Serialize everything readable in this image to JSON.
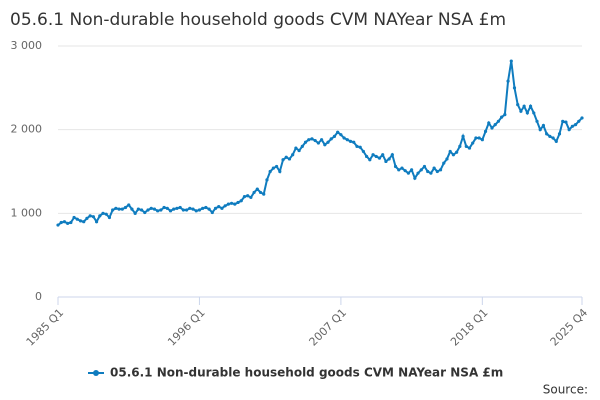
{
  "chart_data": {
    "type": "line",
    "title": "05.6.1 Non-durable household goods CVM NAYear NSA £m",
    "source": "Source:",
    "categories": [
      "1985 Q1",
      null,
      null,
      null,
      null,
      null,
      null,
      null,
      null,
      null,
      null,
      null,
      null,
      null,
      null,
      null,
      null,
      null,
      null,
      null,
      null,
      null,
      null,
      null,
      null,
      null,
      null,
      null,
      null,
      null,
      null,
      null,
      null,
      null,
      null,
      null,
      null,
      null,
      null,
      null,
      null,
      null,
      null,
      null,
      "1996 Q1",
      null,
      null,
      null,
      null,
      null,
      null,
      null,
      null,
      null,
      null,
      null,
      null,
      null,
      null,
      null,
      null,
      null,
      null,
      null,
      null,
      null,
      null,
      null,
      null,
      null,
      null,
      null,
      null,
      null,
      null,
      null,
      null,
      null,
      null,
      null,
      null,
      null,
      null,
      null,
      null,
      null,
      null,
      null,
      "2007 Q1",
      null,
      null,
      null,
      null,
      null,
      null,
      null,
      null,
      null,
      null,
      null,
      null,
      null,
      null,
      null,
      null,
      null,
      null,
      null,
      null,
      null,
      null,
      null,
      null,
      null,
      null,
      null,
      null,
      null,
      null,
      null,
      null,
      null,
      null,
      null,
      null,
      null,
      null,
      null,
      null,
      null,
      null,
      null,
      "2018 Q1",
      null,
      null,
      null,
      null,
      null,
      null,
      null,
      null,
      null,
      null,
      null,
      null,
      null,
      null,
      null,
      null,
      null,
      null,
      null,
      null,
      null,
      null,
      null,
      null,
      null,
      null,
      null,
      null,
      null,
      null,
      "2025 Q4"
    ],
    "series": [
      {
        "name": "05.6.1 Non-durable household goods CVM NAYear NSA £m",
        "color": "#0f7cbf",
        "values": [
          860,
          890,
          900,
          880,
          890,
          950,
          930,
          910,
          900,
          940,
          970,
          960,
          900,
          970,
          1000,
          990,
          950,
          1040,
          1060,
          1050,
          1050,
          1070,
          1100,
          1050,
          1000,
          1050,
          1040,
          1010,
          1040,
          1060,
          1050,
          1030,
          1040,
          1070,
          1060,
          1030,
          1050,
          1060,
          1070,
          1040,
          1040,
          1060,
          1050,
          1030,
          1040,
          1060,
          1070,
          1050,
          1010,
          1060,
          1080,
          1060,
          1090,
          1110,
          1120,
          1110,
          1130,
          1150,
          1200,
          1210,
          1190,
          1250,
          1290,
          1250,
          1230,
          1400,
          1500,
          1540,
          1560,
          1500,
          1640,
          1670,
          1650,
          1700,
          1780,
          1750,
          1800,
          1850,
          1880,
          1890,
          1870,
          1840,
          1880,
          1820,
          1850,
          1890,
          1920,
          1970,
          1940,
          1900,
          1880,
          1860,
          1850,
          1800,
          1790,
          1740,
          1680,
          1640,
          1700,
          1680,
          1660,
          1700,
          1620,
          1650,
          1700,
          1560,
          1520,
          1540,
          1510,
          1480,
          1520,
          1420,
          1480,
          1520,
          1560,
          1500,
          1480,
          1540,
          1500,
          1520,
          1600,
          1650,
          1740,
          1700,
          1730,
          1800,
          1920,
          1800,
          1780,
          1840,
          1900,
          1900,
          1880,
          1980,
          2080,
          2020,
          2060,
          2100,
          2150,
          2180,
          2580,
          2820,
          2500,
          2300,
          2220,
          2280,
          2200,
          2280,
          2200,
          2100,
          2000,
          2050,
          1950,
          1920,
          1900,
          1860,
          1950,
          2100,
          2090,
          2000,
          2040,
          2060,
          2100,
          2140
        ]
      }
    ],
    "ylim": [
      0,
      3000
    ],
    "yticks": [
      0,
      {
        "value": 1000,
        "label": "1 000"
      },
      {
        "value": 2000,
        "label": "2 000"
      },
      {
        "value": 3000,
        "label": "3 000"
      }
    ],
    "grid": true
  }
}
